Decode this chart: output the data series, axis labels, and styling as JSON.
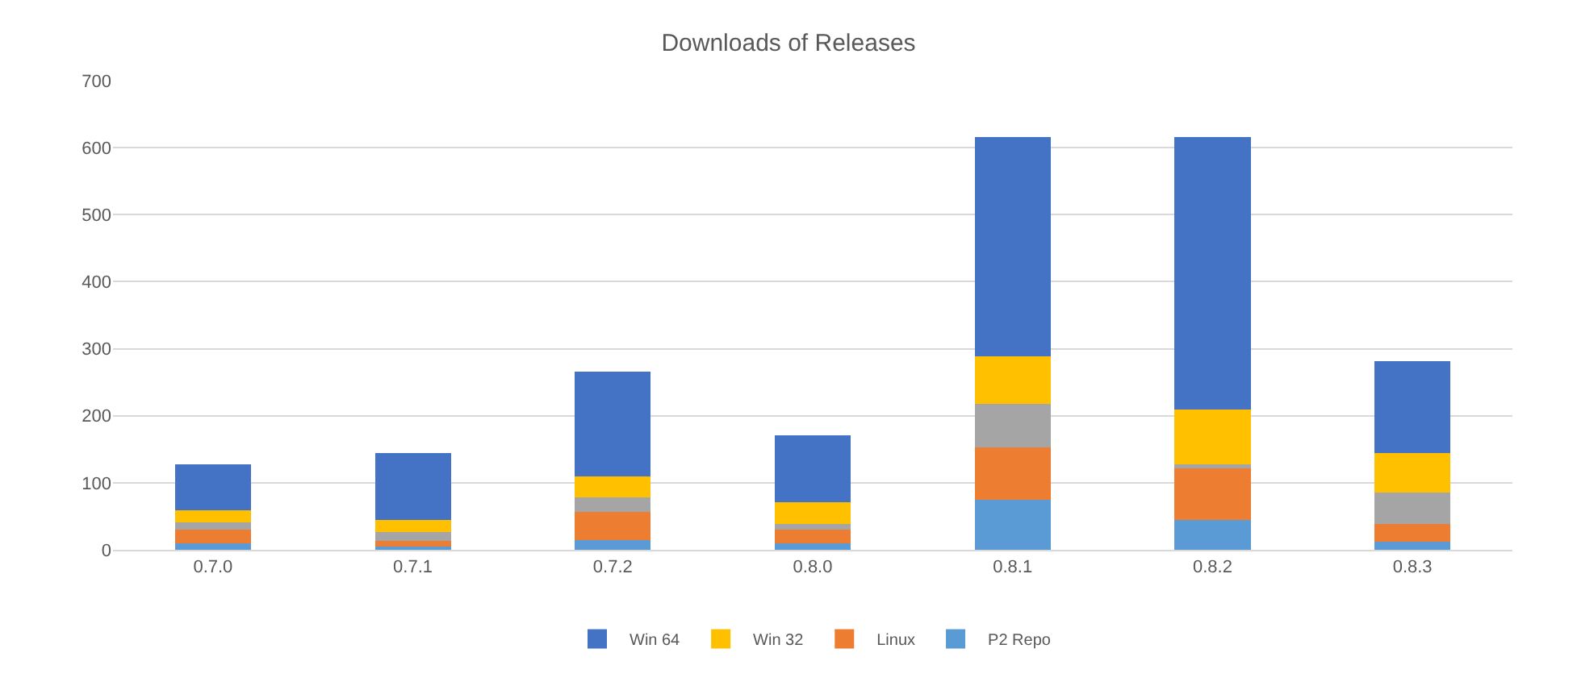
{
  "chart_data": {
    "type": "bar",
    "title": "Downloads of Releases",
    "categories": [
      "0.7.0",
      "0.7.1",
      "0.7.2",
      "0.8.0",
      "0.8.1",
      "0.8.2",
      "0.8.3"
    ],
    "stacked": true,
    "ylim": [
      0,
      700
    ],
    "yticks": [
      0,
      100,
      200,
      300,
      400,
      500,
      600,
      700
    ],
    "grid": "y",
    "legend": "bottom",
    "series": [
      {
        "name": "P2 Repo",
        "color": "#5b9bd5",
        "values": [
          10,
          5,
          15,
          10,
          75,
          44,
          12
        ]
      },
      {
        "name": "Linux",
        "color": "#ed7d31",
        "values": [
          20,
          8,
          42,
          20,
          78,
          77,
          27
        ]
      },
      {
        "color": "#a5a5a5",
        "values": [
          11,
          14,
          21,
          9,
          65,
          6,
          46
        ]
      },
      {
        "name": "Win 32",
        "color": "#ffc000",
        "values": [
          18,
          17,
          31,
          32,
          71,
          82,
          59
        ]
      },
      {
        "name": "Win 64",
        "color": "#4472c4",
        "values": [
          69,
          100,
          157,
          100,
          327,
          407,
          138
        ]
      }
    ]
  }
}
